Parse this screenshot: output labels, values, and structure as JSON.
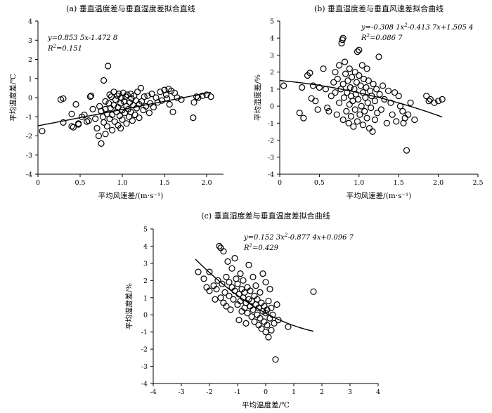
{
  "chart_data": [
    {
      "id": "a",
      "type": "scatter",
      "title": "(a) 垂直温度差与垂直湿度差拟合直线",
      "xlabel": "平均风速差/(m·s⁻¹)",
      "ylabel": "平均温度差/℃",
      "xlim": [
        0,
        2.2
      ],
      "ylim": [
        -4,
        4
      ],
      "xticks": [
        0,
        0.5,
        1.0,
        1.5,
        2.0
      ],
      "xtick_labels": [
        "0",
        "0.5",
        "1.0",
        "1.5",
        "2.0"
      ],
      "yticks": [
        -4,
        -3,
        -2,
        -1,
        0,
        1,
        2,
        3,
        4
      ],
      "ytick_labels": [
        "-4",
        "-3",
        "-2",
        "-1",
        "0",
        "1",
        "2",
        "3",
        "4"
      ],
      "grid": false,
      "annotations": [
        "y=0.853 5x-1.472 8",
        "R²=0.151"
      ],
      "fit": {
        "kind": "linear",
        "coef": [
          0.8535,
          -1.4728
        ],
        "x_range": [
          0,
          2.05
        ]
      },
      "points": [
        [
          0.05,
          -1.75
        ],
        [
          0.27,
          -0.1
        ],
        [
          0.3,
          -0.05
        ],
        [
          0.3,
          -1.3
        ],
        [
          0.4,
          -0.85
        ],
        [
          0.4,
          -1.5
        ],
        [
          0.42,
          -1.55
        ],
        [
          0.45,
          -0.35
        ],
        [
          0.48,
          -1.4
        ],
        [
          0.48,
          -1.35
        ],
        [
          0.52,
          -1.0
        ],
        [
          0.55,
          -0.9
        ],
        [
          0.58,
          -1.25
        ],
        [
          0.6,
          -1.2
        ],
        [
          0.62,
          0.05
        ],
        [
          0.63,
          0.1
        ],
        [
          0.65,
          -0.6
        ],
        [
          0.68,
          -1.1
        ],
        [
          0.7,
          -1.6
        ],
        [
          0.72,
          -2.0
        ],
        [
          0.73,
          -0.45
        ],
        [
          0.75,
          -2.4
        ],
        [
          0.75,
          -0.7
        ],
        [
          0.77,
          -1.0
        ],
        [
          0.78,
          -1.3
        ],
        [
          0.78,
          0.9
        ],
        [
          0.8,
          -0.2
        ],
        [
          0.8,
          -1.9
        ],
        [
          0.8,
          -0.6
        ],
        [
          0.82,
          -0.85
        ],
        [
          0.82,
          -1.5
        ],
        [
          0.83,
          1.65
        ],
        [
          0.84,
          -0.3
        ],
        [
          0.85,
          0.15
        ],
        [
          0.85,
          -1.1
        ],
        [
          0.86,
          -0.55
        ],
        [
          0.87,
          0.05
        ],
        [
          0.88,
          -1.7
        ],
        [
          0.88,
          -0.9
        ],
        [
          0.9,
          0.3
        ],
        [
          0.9,
          -0.4
        ],
        [
          0.91,
          -1.25
        ],
        [
          0.92,
          -0.1
        ],
        [
          0.93,
          -0.75
        ],
        [
          0.94,
          0.1
        ],
        [
          0.95,
          -1.45
        ],
        [
          0.95,
          -0.5
        ],
        [
          0.96,
          0.2
        ],
        [
          0.97,
          -0.95
        ],
        [
          0.98,
          -0.3
        ],
        [
          0.98,
          -1.6
        ],
        [
          0.99,
          0.0
        ],
        [
          1.0,
          -0.65
        ],
        [
          1.0,
          -1.15
        ],
        [
          1.01,
          0.25
        ],
        [
          1.02,
          -0.2
        ],
        [
          1.03,
          -0.8
        ],
        [
          1.04,
          0.05
        ],
        [
          1.05,
          -1.35
        ],
        [
          1.05,
          -0.45
        ],
        [
          1.06,
          0.15
        ],
        [
          1.07,
          -0.6
        ],
        [
          1.08,
          -1.0
        ],
        [
          1.09,
          -0.25
        ],
        [
          1.1,
          0.2
        ],
        [
          1.1,
          -0.75
        ],
        [
          1.11,
          -0.05
        ],
        [
          1.12,
          -1.2
        ],
        [
          1.13,
          -0.4
        ],
        [
          1.14,
          0.1
        ],
        [
          1.15,
          -0.9
        ],
        [
          1.16,
          -0.15
        ],
        [
          1.17,
          -0.55
        ],
        [
          1.18,
          0.3
        ],
        [
          1.2,
          -0.35
        ],
        [
          1.2,
          -1.05
        ],
        [
          1.22,
          0.5
        ],
        [
          1.23,
          -0.2
        ],
        [
          1.25,
          -0.65
        ],
        [
          1.26,
          0.05
        ],
        [
          1.28,
          -0.45
        ],
        [
          1.3,
          0.1
        ],
        [
          1.32,
          -0.8
        ],
        [
          1.33,
          -0.3
        ],
        [
          1.35,
          0.2
        ],
        [
          1.37,
          -0.5
        ],
        [
          1.4,
          0.0
        ],
        [
          1.42,
          -0.25
        ],
        [
          1.45,
          0.3
        ],
        [
          1.47,
          -0.15
        ],
        [
          1.5,
          0.4
        ],
        [
          1.52,
          0.15
        ],
        [
          1.53,
          -0.05
        ],
        [
          1.55,
          0.45
        ],
        [
          1.56,
          -0.35
        ],
        [
          1.58,
          0.35
        ],
        [
          1.6,
          -0.75
        ],
        [
          1.62,
          0.25
        ],
        [
          1.65,
          0.0
        ],
        [
          1.7,
          -0.1
        ],
        [
          1.84,
          -1.05
        ],
        [
          1.85,
          -0.25
        ],
        [
          1.88,
          0.05
        ],
        [
          1.9,
          0.0
        ],
        [
          1.95,
          0.1
        ],
        [
          2.0,
          0.15
        ],
        [
          2.05,
          0.05
        ]
      ]
    },
    {
      "id": "b",
      "type": "scatter",
      "title": "(b) 垂直湿度差与垂直风速差拟合曲线",
      "xlabel": "平均风速差/(m·s⁻¹)",
      "ylabel": "平均湿度差/%",
      "xlim": [
        0,
        2.5
      ],
      "ylim": [
        -4,
        5
      ],
      "xticks": [
        0,
        0.5,
        1.0,
        1.5,
        2.0,
        2.5
      ],
      "xtick_labels": [
        "0",
        "0.5",
        "1.0",
        "1.5",
        "2.0",
        "2.5"
      ],
      "yticks": [
        -4,
        -3,
        -2,
        -1,
        0,
        1,
        2,
        3,
        4,
        5
      ],
      "ytick_labels": [
        "-4",
        "-3",
        "-2",
        "-1",
        "0",
        "1",
        "2",
        "3",
        "4",
        "5"
      ],
      "grid": false,
      "annotations": [
        "y=-0.308 1x²-0.413 7x+1.505 4",
        "R²=0.086 7"
      ],
      "fit": {
        "kind": "quadratic",
        "coef": [
          -0.3081,
          -0.4137,
          1.5054
        ],
        "x_range": [
          0,
          2.05
        ]
      },
      "points": [
        [
          0.05,
          1.2
        ],
        [
          0.25,
          -0.4
        ],
        [
          0.28,
          1.1
        ],
        [
          0.3,
          -0.7
        ],
        [
          0.35,
          1.8
        ],
        [
          0.38,
          1.95
        ],
        [
          0.4,
          0.45
        ],
        [
          0.42,
          1.2
        ],
        [
          0.45,
          0.3
        ],
        [
          0.48,
          -0.2
        ],
        [
          0.5,
          1.1
        ],
        [
          0.55,
          2.2
        ],
        [
          0.58,
          1.0
        ],
        [
          0.6,
          -0.1
        ],
        [
          0.62,
          -0.3
        ],
        [
          0.65,
          0.6
        ],
        [
          0.68,
          1.4
        ],
        [
          0.7,
          0.8
        ],
        [
          0.7,
          2.0
        ],
        [
          0.72,
          -0.5
        ],
        [
          0.73,
          1.6
        ],
        [
          0.75,
          0.2
        ],
        [
          0.75,
          2.4
        ],
        [
          0.77,
          1.0
        ],
        [
          0.78,
          3.7
        ],
        [
          0.79,
          3.9
        ],
        [
          0.8,
          -0.8
        ],
        [
          0.8,
          1.3
        ],
        [
          0.8,
          4.0
        ],
        [
          0.81,
          0.5
        ],
        [
          0.82,
          2.6
        ],
        [
          0.83,
          1.9
        ],
        [
          0.84,
          -0.3
        ],
        [
          0.85,
          0.8
        ],
        [
          0.86,
          1.5
        ],
        [
          0.87,
          -1.0
        ],
        [
          0.88,
          0.1
        ],
        [
          0.88,
          2.2
        ],
        [
          0.89,
          1.1
        ],
        [
          0.9,
          -0.6
        ],
        [
          0.9,
          0.6
        ],
        [
          0.91,
          1.7
        ],
        [
          0.92,
          0.3
        ],
        [
          0.93,
          -1.2
        ],
        [
          0.94,
          1.0
        ],
        [
          0.95,
          2.0
        ],
        [
          0.95,
          -0.2
        ],
        [
          0.96,
          0.7
        ],
        [
          0.97,
          1.4
        ],
        [
          0.98,
          3.2
        ],
        [
          0.98,
          -0.9
        ],
        [
          0.99,
          0.4
        ],
        [
          1.0,
          1.8
        ],
        [
          1.0,
          3.3
        ],
        [
          1.01,
          -0.5
        ],
        [
          1.02,
          1.2
        ],
        [
          1.03,
          0.0
        ],
        [
          1.04,
          2.4
        ],
        [
          1.05,
          0.8
        ],
        [
          1.05,
          -1.1
        ],
        [
          1.06,
          1.6
        ],
        [
          1.07,
          -0.3
        ],
        [
          1.08,
          0.5
        ],
        [
          1.09,
          1.1
        ],
        [
          1.1,
          -0.7
        ],
        [
          1.1,
          2.2
        ],
        [
          1.11,
          0.2
        ],
        [
          1.12,
          1.5
        ],
        [
          1.13,
          -1.3
        ],
        [
          1.14,
          0.9
        ],
        [
          1.15,
          -0.1
        ],
        [
          1.16,
          0.6
        ],
        [
          1.17,
          -1.5
        ],
        [
          1.18,
          1.3
        ],
        [
          1.2,
          0.3
        ],
        [
          1.2,
          -0.8
        ],
        [
          1.22,
          1.0
        ],
        [
          1.23,
          -0.4
        ],
        [
          1.25,
          2.9
        ],
        [
          1.26,
          0.7
        ],
        [
          1.28,
          -0.2
        ],
        [
          1.3,
          1.2
        ],
        [
          1.32,
          0.4
        ],
        [
          1.35,
          -1.0
        ],
        [
          1.37,
          0.9
        ],
        [
          1.4,
          0.2
        ],
        [
          1.42,
          -0.5
        ],
        [
          1.45,
          0.8
        ],
        [
          1.47,
          -0.9
        ],
        [
          1.5,
          0.6
        ],
        [
          1.52,
          0.0
        ],
        [
          1.55,
          -0.3
        ],
        [
          1.56,
          -1.0
        ],
        [
          1.58,
          -0.7
        ],
        [
          1.6,
          -2.6
        ],
        [
          1.62,
          -0.5
        ],
        [
          1.65,
          0.2
        ],
        [
          1.7,
          -0.8
        ],
        [
          1.85,
          0.6
        ],
        [
          1.88,
          0.3
        ],
        [
          1.9,
          0.4
        ],
        [
          1.95,
          0.2
        ],
        [
          2.0,
          0.3
        ],
        [
          2.05,
          0.4
        ]
      ]
    },
    {
      "id": "c",
      "type": "scatter",
      "title": "(c) 垂直湿度差与垂直温度差拟合曲线",
      "xlabel": "平均温度差/℃",
      "ylabel": "平均湿度差/%",
      "xlim": [
        -4,
        4
      ],
      "ylim": [
        -4,
        5
      ],
      "xticks": [
        -4,
        -3,
        -2,
        -1,
        0,
        1,
        2,
        3,
        4
      ],
      "xtick_labels": [
        "-4",
        "-3",
        "-2",
        "-1",
        "0",
        "1",
        "2",
        "3",
        "4"
      ],
      "yticks": [
        -4,
        -3,
        -2,
        -1,
        0,
        1,
        2,
        3,
        4,
        5
      ],
      "ytick_labels": [
        "-4",
        "-3",
        "-2",
        "-1",
        "0",
        "1",
        "2",
        "3",
        "4",
        "5"
      ],
      "grid": false,
      "annotations": [
        "y=0.152 3x²-0.877 4x+0.096 7",
        "R²=0.429"
      ],
      "fit": {
        "kind": "quadratic",
        "coef": [
          0.1523,
          -0.8774,
          0.0967
        ],
        "x_range": [
          -2.5,
          1.7
        ]
      },
      "points": [
        [
          -2.4,
          2.5
        ],
        [
          -2.2,
          2.1
        ],
        [
          -2.1,
          1.6
        ],
        [
          -2.0,
          2.5
        ],
        [
          -2.0,
          1.4
        ],
        [
          -1.85,
          1.7
        ],
        [
          -1.8,
          0.9
        ],
        [
          -1.75,
          1.5
        ],
        [
          -1.7,
          2.0
        ],
        [
          -1.65,
          4.0
        ],
        [
          -1.6,
          3.9
        ],
        [
          -1.6,
          1.0
        ],
        [
          -1.55,
          1.8
        ],
        [
          -1.5,
          0.7
        ],
        [
          -1.5,
          3.7
        ],
        [
          -1.45,
          1.3
        ],
        [
          -1.4,
          2.2
        ],
        [
          -1.4,
          0.5
        ],
        [
          -1.35,
          3.1
        ],
        [
          -1.3,
          1.9
        ],
        [
          -1.3,
          1.1
        ],
        [
          -1.25,
          0.3
        ],
        [
          -1.2,
          2.7
        ],
        [
          -1.2,
          1.6
        ],
        [
          -1.15,
          0.9
        ],
        [
          -1.1,
          1.4
        ],
        [
          -1.1,
          3.3
        ],
        [
          -1.05,
          2.1
        ],
        [
          -1.0,
          0.6
        ],
        [
          -1.0,
          1.8
        ],
        [
          -0.95,
          1.2
        ],
        [
          -0.95,
          -0.3
        ],
        [
          -0.9,
          2.4
        ],
        [
          -0.9,
          0.8
        ],
        [
          -0.85,
          1.5
        ],
        [
          -0.85,
          0.2
        ],
        [
          -0.8,
          1.0
        ],
        [
          -0.8,
          2.0
        ],
        [
          -0.75,
          0.4
        ],
        [
          -0.75,
          1.3
        ],
        [
          -0.7,
          0.7
        ],
        [
          -0.7,
          -0.5
        ],
        [
          -0.65,
          1.6
        ],
        [
          -0.65,
          0.1
        ],
        [
          -0.6,
          2.9
        ],
        [
          -0.6,
          0.9
        ],
        [
          -0.55,
          0.5
        ],
        [
          -0.55,
          1.4
        ],
        [
          -0.5,
          -0.1
        ],
        [
          -0.5,
          0.8
        ],
        [
          -0.45,
          2.2
        ],
        [
          -0.45,
          0.3
        ],
        [
          -0.4,
          1.1
        ],
        [
          -0.4,
          -0.4
        ],
        [
          -0.35,
          0.6
        ],
        [
          -0.35,
          1.7
        ],
        [
          -0.3,
          0.0
        ],
        [
          -0.3,
          0.9
        ],
        [
          -0.25,
          -0.6
        ],
        [
          -0.25,
          0.4
        ],
        [
          -0.2,
          1.3
        ],
        [
          -0.2,
          -0.2
        ],
        [
          -0.15,
          0.7
        ],
        [
          -0.15,
          -0.8
        ],
        [
          -0.1,
          0.2
        ],
        [
          -0.1,
          2.4
        ],
        [
          -0.05,
          -0.4
        ],
        [
          -0.05,
          0.5
        ],
        [
          0.0,
          -1.0
        ],
        [
          0.0,
          0.1
        ],
        [
          0.0,
          1.9
        ],
        [
          0.05,
          -0.6
        ],
        [
          0.05,
          0.3
        ],
        [
          0.1,
          -1.3
        ],
        [
          0.1,
          0.8
        ],
        [
          0.15,
          -0.2
        ],
        [
          0.15,
          1.5
        ],
        [
          0.2,
          -0.9
        ],
        [
          0.2,
          0.4
        ],
        [
          0.25,
          0.0
        ],
        [
          0.3,
          -0.5
        ],
        [
          0.35,
          -2.6
        ],
        [
          0.4,
          0.6
        ],
        [
          0.45,
          -0.3
        ],
        [
          0.8,
          -0.7
        ],
        [
          1.7,
          1.35
        ]
      ]
    }
  ]
}
